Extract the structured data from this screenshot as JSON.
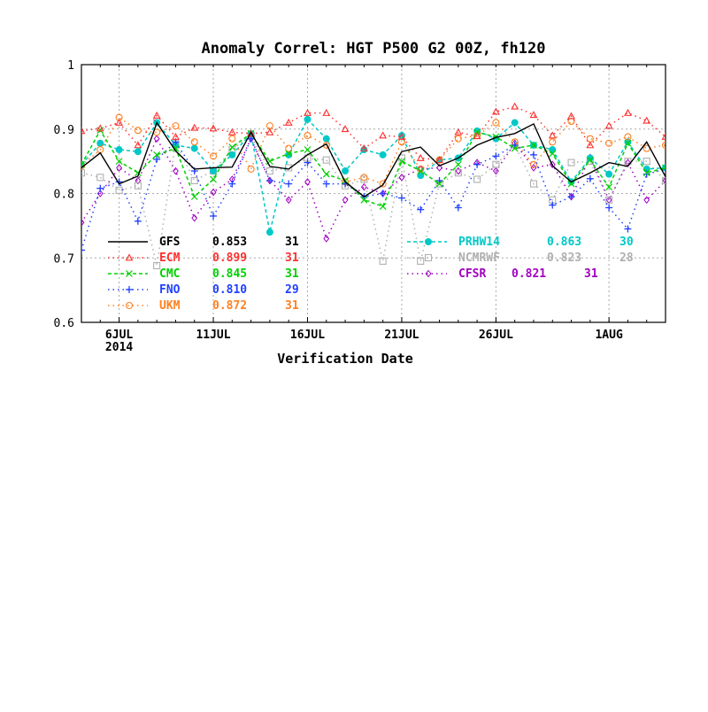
{
  "chart_data": {
    "type": "line",
    "title": "Anomaly Correl: HGT P500 G2 00Z, fh120",
    "xlabel": "Verification Date",
    "ylabel": "",
    "ylim": [
      0.6,
      1.0
    ],
    "yticks": [
      "0.6",
      "0.7",
      "0.8",
      "0.9",
      "1"
    ],
    "xticks": [
      {
        "day": 6,
        "label": "6JUL",
        "sublabel": "2014"
      },
      {
        "day": 11,
        "label": "11JUL",
        "sublabel": ""
      },
      {
        "day": 16,
        "label": "16JUL",
        "sublabel": ""
      },
      {
        "day": 21,
        "label": "21JUL",
        "sublabel": ""
      },
      {
        "day": 26,
        "label": "26JUL",
        "sublabel": ""
      },
      {
        "day": 32,
        "label": "1AUG",
        "sublabel": ""
      }
    ],
    "xlim": [
      4,
      35
    ],
    "x": [
      4,
      5,
      6,
      7,
      8,
      9,
      10,
      11,
      12,
      13,
      14,
      15,
      16,
      17,
      18,
      19,
      20,
      21,
      22,
      23,
      24,
      25,
      26,
      27,
      28,
      29,
      30,
      31,
      32,
      33,
      34,
      35
    ],
    "grid": true,
    "series": [
      {
        "name": "GFS",
        "mean": "0.853",
        "count": "31",
        "color": "#000000",
        "style": "solid",
        "marker": "none",
        "values": [
          0.84,
          0.863,
          0.815,
          0.827,
          0.91,
          0.866,
          0.838,
          0.84,
          0.841,
          0.895,
          0.842,
          0.838,
          0.86,
          0.877,
          0.818,
          0.795,
          0.813,
          0.865,
          0.872,
          0.843,
          0.855,
          0.875,
          0.887,
          0.893,
          0.908,
          0.843,
          0.818,
          0.832,
          0.848,
          0.842,
          0.88,
          0.826
        ]
      },
      {
        "name": "ECM",
        "mean": "0.899",
        "count": "31",
        "color": "#ff3030",
        "style": "dotted",
        "marker": "triangle",
        "values": [
          0.897,
          0.901,
          0.91,
          0.875,
          0.921,
          0.888,
          0.902,
          0.901,
          0.895,
          0.893,
          0.895,
          0.91,
          0.925,
          0.925,
          0.9,
          0.87,
          0.89,
          0.888,
          0.855,
          0.852,
          0.895,
          0.889,
          0.927,
          0.935,
          0.922,
          0.89,
          0.92,
          0.875,
          0.905,
          0.925,
          0.913,
          0.888
        ]
      },
      {
        "name": "CMC",
        "mean": "0.845",
        "count": "31",
        "color": "#00d000",
        "style": "dashed",
        "marker": "x",
        "values": [
          0.845,
          0.898,
          0.85,
          0.832,
          0.86,
          0.87,
          0.795,
          0.822,
          0.872,
          0.893,
          0.85,
          0.862,
          0.868,
          0.83,
          0.82,
          0.79,
          0.78,
          0.85,
          0.835,
          0.815,
          0.845,
          0.895,
          0.888,
          0.87,
          0.875,
          0.862,
          0.815,
          0.852,
          0.81,
          0.878,
          0.832,
          0.84
        ]
      },
      {
        "name": "FNO",
        "mean": "0.810",
        "count": "29",
        "color": "#2040ff",
        "style": "dotted",
        "marker": "plus",
        "values": [
          0.712,
          0.808,
          0.818,
          0.757,
          0.853,
          0.88,
          0.835,
          0.765,
          0.815,
          0.885,
          0.82,
          0.815,
          0.848,
          0.815,
          0.815,
          0.795,
          0.8,
          0.793,
          0.775,
          0.82,
          0.778,
          0.845,
          0.858,
          0.875,
          0.86,
          0.782,
          0.795,
          0.823,
          0.778,
          0.745,
          0.83,
          0.838
        ]
      },
      {
        "name": "UKM",
        "mean": "0.872",
        "count": "31",
        "color": "#ff8020",
        "style": "dotted",
        "marker": "circle",
        "values": [
          0.843,
          0.868,
          0.918,
          0.898,
          0.895,
          0.905,
          0.88,
          0.858,
          0.885,
          0.838,
          0.905,
          0.87,
          0.89,
          0.875,
          0.818,
          0.825,
          0.815,
          0.88,
          0.838,
          0.852,
          0.885,
          0.89,
          0.91,
          0.88,
          0.845,
          0.88,
          0.912,
          0.885,
          0.878,
          0.888,
          0.87,
          0.875
        ]
      },
      {
        "name": "PRHW14",
        "mean": "0.863",
        "count": "30",
        "color": "#00c8c8",
        "style": "dashed",
        "marker": "dot",
        "values": [
          0.845,
          0.878,
          0.868,
          0.865,
          0.91,
          0.875,
          0.87,
          0.835,
          0.86,
          0.893,
          0.74,
          0.86,
          0.915,
          0.885,
          0.835,
          0.868,
          0.86,
          0.89,
          0.828,
          0.852,
          0.855,
          0.897,
          0.885,
          0.91,
          0.875,
          0.868,
          0.818,
          0.855,
          0.83,
          0.88,
          0.838,
          0.84
        ]
      },
      {
        "name": "NCMRWF",
        "mean": "0.823",
        "count": "28",
        "color": "#b0b0b0",
        "style": "dotted",
        "marker": "square",
        "values": [
          0.832,
          0.825,
          0.805,
          0.812,
          0.688,
          0.878,
          0.82,
          0.835,
          0.868,
          0.89,
          0.835,
          0.84,
          0.855,
          0.852,
          0.812,
          0.822,
          0.695,
          0.855,
          0.695,
          0.815,
          0.832,
          0.822,
          0.845,
          0.875,
          0.815,
          0.79,
          0.848,
          0.85,
          0.79,
          0.85,
          0.85,
          0.82
        ]
      },
      {
        "name": "CFSR",
        "mean": "0.821",
        "count": "31",
        "color": "#a000c0",
        "style": "dotted",
        "marker": "diamond",
        "values": [
          0.755,
          0.8,
          0.84,
          0.82,
          0.885,
          0.835,
          0.762,
          0.802,
          0.822,
          0.885,
          0.82,
          0.79,
          0.818,
          0.73,
          0.79,
          0.81,
          0.8,
          0.825,
          0.838,
          0.84,
          0.835,
          0.848,
          0.835,
          0.878,
          0.84,
          0.845,
          0.795,
          0.856,
          0.79,
          0.848,
          0.79,
          0.82
        ]
      }
    ]
  }
}
